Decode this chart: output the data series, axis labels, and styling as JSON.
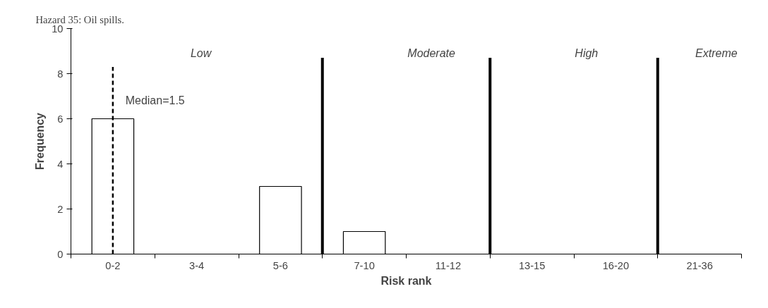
{
  "chart_data": {
    "type": "bar",
    "title": "Hazard 35: Oil spills.",
    "xlabel": "Risk rank",
    "ylabel": "Frequency",
    "categories": [
      "0-2",
      "3-4",
      "5-6",
      "7-10",
      "11-12",
      "13-15",
      "16-20",
      "21-36"
    ],
    "values": [
      6,
      0,
      3,
      1,
      0,
      0,
      0,
      0
    ],
    "color": "#ffffff",
    "ylim": [
      0,
      10
    ],
    "yticks": [
      0,
      2,
      4,
      6,
      8,
      10
    ],
    "grid": false,
    "ref_lines": [
      {
        "axis": "x",
        "value": "0-2",
        "label": "Median=1.5",
        "line_style": "dashed",
        "color": "#000000"
      }
    ],
    "annotations": [
      "Low",
      "Moderate",
      "High",
      "Extreme"
    ]
  }
}
